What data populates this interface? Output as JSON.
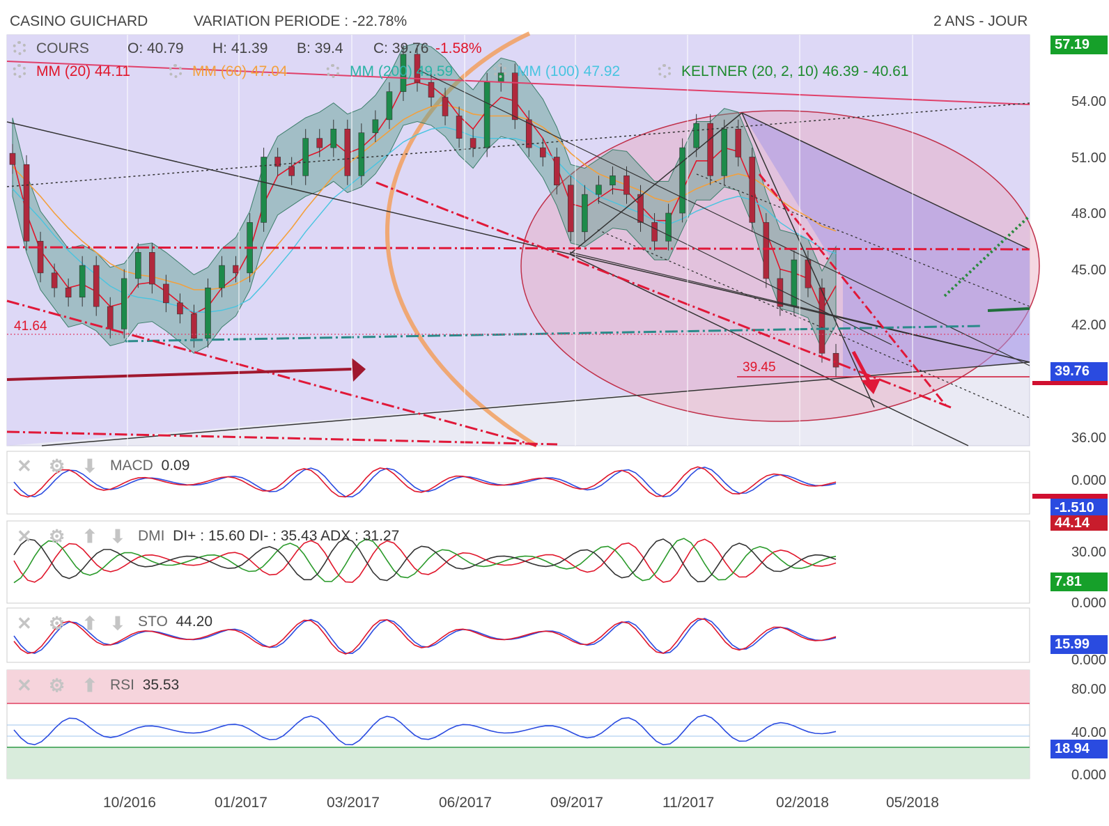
{
  "header": {
    "name": "CASINO GUICHARD",
    "variation": "VARIATION PERIODE : -22.78%",
    "period": "2 ANS - JOUR"
  },
  "ohlc": {
    "label": "COURS",
    "o": "O: 40.79",
    "h": "H: 41.39",
    "b": "B: 39.4",
    "c": "C: 39.76",
    "change": "-1.58%"
  },
  "indicators": {
    "mm20": "MM (20)  44.11",
    "mm60": "MM (60)  47.04",
    "mm200": "MM (200)  49.59",
    "mm100": "MM (100)  47.92",
    "keltner": "KELTNER (20, 2, 10)  46.39 - 40.61"
  },
  "annotations": {
    "support_left": "41.64",
    "support_right": "39.45"
  },
  "price_axis": {
    "ticks": [
      "54.00",
      "51.00",
      "48.00",
      "45.00",
      "42.00",
      "36.00"
    ],
    "badge_high": "57.19",
    "badge_last": "39.76"
  },
  "macd": {
    "label": "MACD",
    "value": "0.09",
    "axis_zero": "0.000",
    "badge": "-1.510"
  },
  "dmi": {
    "label": "DMI",
    "values": "DI+ : 15.60 DI- : 35.43 ADX : 31.27",
    "axis_30": "30.00",
    "axis_zero": "0.000",
    "badge_top": "44.14",
    "badge_green": "7.81"
  },
  "sto": {
    "label": "STO",
    "value": "44.20",
    "axis_zero": "0.000",
    "badge": "15.99"
  },
  "rsi": {
    "label": "RSI",
    "value": "35.53",
    "axis_80": "80.00",
    "axis_40": "40.00",
    "axis_zero": "0.000",
    "badge": "18.94"
  },
  "x_axis": [
    "10/2016",
    "01/2017",
    "03/2017",
    "06/2017",
    "09/2017",
    "11/2017",
    "02/2018",
    "05/2018"
  ],
  "chart_data": {
    "type": "candlestick",
    "title": "CASINO GUICHARD",
    "ylim": [
      36,
      57.5
    ],
    "x_ticks": [
      "10/2016",
      "01/2017",
      "03/2017",
      "06/2017",
      "09/2017",
      "11/2017",
      "02/2018",
      "05/2018"
    ],
    "series": [
      {
        "name": "COURS",
        "values": [
          50.6,
          46.5,
          44.8,
          44.0,
          43.5,
          45.2,
          43.0,
          41.8,
          44.5,
          45.9,
          44.2,
          43.2,
          42.6,
          41.3,
          44.0,
          45.2,
          44.8,
          47.5,
          51.0,
          50.5,
          50.0,
          52.0,
          51.5,
          52.5,
          50.0,
          52.3,
          53.0,
          54.5,
          56.5,
          55.0,
          54.2,
          53.2,
          52.0,
          51.5,
          55.0,
          55.5,
          53.0,
          51.5,
          51.0,
          49.5,
          47.0,
          49.0,
          49.5,
          50.0,
          49.0,
          47.5,
          46.5,
          48.0,
          51.5,
          52.8,
          50.0,
          52.5,
          51.0,
          47.5,
          44.5,
          43.0,
          45.5,
          44.0,
          40.5,
          39.76
        ]
      },
      {
        "name": "MM (20)",
        "values": [
          51.0,
          48.0,
          46.0,
          45.0,
          44.0,
          44.2,
          43.8,
          43.0,
          43.2,
          44.2,
          44.3,
          43.8,
          43.2,
          42.6,
          43.0,
          44.0,
          44.6,
          46.0,
          48.5,
          50.0,
          50.5,
          51.0,
          51.3,
          51.8,
          51.2,
          51.5,
          52.2,
          53.3,
          54.8,
          55.0,
          54.8,
          54.2,
          53.2,
          52.5,
          53.5,
          54.2,
          54.0,
          53.0,
          52.0,
          50.5,
          48.5,
          48.3,
          48.8,
          49.3,
          49.2,
          48.4,
          47.6,
          47.6,
          49.2,
          50.8,
          50.8,
          51.5,
          51.3,
          49.5,
          47.0,
          45.0,
          44.8,
          44.5,
          42.8,
          44.11
        ]
      },
      {
        "name": "MM (60)",
        "values": [
          50.5,
          49.7,
          48.9,
          48.0,
          47.2,
          46.5,
          45.9,
          45.3,
          44.9,
          44.7,
          44.6,
          44.4,
          44.2,
          43.9,
          43.9,
          44.0,
          44.2,
          44.6,
          45.4,
          46.3,
          47.2,
          48.2,
          49.1,
          50.0,
          50.6,
          51.2,
          51.8,
          52.4,
          53.0,
          53.4,
          53.7,
          53.8,
          53.6,
          53.3,
          53.2,
          53.2,
          53.2,
          53.0,
          52.6,
          52.0,
          51.2,
          50.6,
          50.1,
          49.8,
          49.5,
          49.2,
          48.8,
          48.6,
          48.9,
          49.3,
          49.6,
          49.9,
          50.1,
          49.9,
          49.4,
          48.7,
          48.2,
          47.8,
          47.3,
          47.04
        ]
      }
    ]
  }
}
